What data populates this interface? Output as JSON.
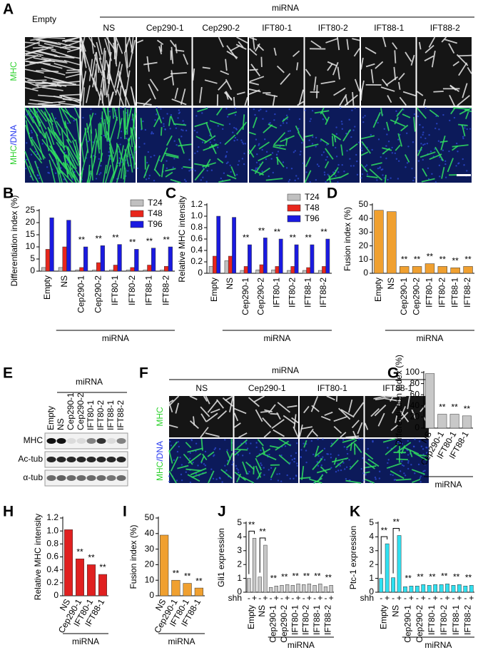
{
  "panel_a": {
    "panel": "A",
    "group_label": "miRNA",
    "columns": [
      "Empty",
      "NS",
      "Cep290-1",
      "Cep290-2",
      "IFT80-1",
      "IFT80-2",
      "IFT88-1",
      "IFT88-2"
    ],
    "row_labels": [
      [
        "MHC"
      ],
      [
        "MHC",
        "/DNA"
      ]
    ]
  },
  "panel_e": {
    "panel": "E",
    "group_label": "miRNA",
    "lanes": [
      "Empty",
      "NS",
      "Cep290-1",
      "Cep290-2",
      "IFT80-1",
      "IFT80-2",
      "IFT88-1",
      "IFT88-2"
    ],
    "rows": [
      "MHC",
      "Ac-tub",
      "α-tub"
    ]
  },
  "panel_f": {
    "panel": "F",
    "group_label": "miRNA",
    "columns": [
      "NS",
      "Cep290-1",
      "IFT80-1",
      "IFT88-1"
    ],
    "row_labels": [
      [
        "MHC"
      ],
      [
        "MHC",
        "/DNA"
      ]
    ]
  },
  "chart_data": [
    {
      "panel": "B",
      "type": "bar",
      "y_label": "Differentiation index (%)",
      "categories": [
        "Empty",
        "NS",
        "Cep290-1",
        "Cep290-2",
        "IFT80-1",
        "IFT80-2",
        "IFT88-1",
        "IFT88-2"
      ],
      "series": [
        {
          "name": "T24",
          "color": "#c0c0c0",
          "values": [
            1.5,
            1.5,
            0.5,
            0.5,
            0.5,
            0.5,
            0.5,
            0.5
          ]
        },
        {
          "name": "T48",
          "color": "#e8261c",
          "values": [
            9,
            10,
            1.5,
            3.5,
            2.5,
            1.5,
            2.5,
            2
          ]
        },
        {
          "name": "T96",
          "color": "#1a1ae0",
          "values": [
            22,
            21,
            10,
            10.5,
            11,
            9,
            9.5,
            10
          ]
        }
      ],
      "significance": [
        null,
        null,
        "**",
        "**",
        "**",
        "**",
        "**",
        "**"
      ],
      "legend": "upper right",
      "ylim": [
        0,
        25
      ],
      "yticks": [
        0,
        5,
        10,
        15,
        20,
        25
      ],
      "group_label": "miRNA"
    },
    {
      "panel": "C",
      "type": "bar",
      "y_label": "Relative MHC intensity",
      "categories": [
        "Empty",
        "NS",
        "Cep290-1",
        "Cep290-2",
        "IFT80-1",
        "IFT80-2",
        "IFT88-1",
        "IFT88-2"
      ],
      "series": [
        {
          "name": "T24",
          "color": "#c0c0c0",
          "values": [
            0.12,
            0.22,
            0.05,
            0.06,
            0.06,
            0.05,
            0.05,
            0.05
          ]
        },
        {
          "name": "T48",
          "color": "#e8261c",
          "values": [
            0.3,
            0.3,
            0.12,
            0.15,
            0.12,
            0.12,
            0.1,
            0.12
          ]
        },
        {
          "name": "T96",
          "color": "#1a1ae0",
          "values": [
            1.0,
            0.98,
            0.5,
            0.62,
            0.6,
            0.5,
            0.5,
            0.6
          ]
        }
      ],
      "significance": [
        null,
        null,
        "**",
        "**",
        "**",
        "**",
        "**",
        "**"
      ],
      "legend": "upper right",
      "ylim": [
        0,
        1.2
      ],
      "yticks": [
        0,
        0.2,
        0.4,
        0.6,
        0.8,
        {
          "value": 1,
          "label": "1.0"
        },
        1.2
      ],
      "group_label": "miRNA"
    },
    {
      "panel": "D",
      "type": "bar",
      "y_label": "Fusion index (%)",
      "categories": [
        "Empty",
        "NS",
        "Cep290-1",
        "Cep290-2",
        "IFT80-1",
        "IFT80-2",
        "IFT88-1",
        "IFT88-2"
      ],
      "values": [
        46,
        45,
        5,
        5,
        7,
        5,
        4,
        5
      ],
      "color": "#f0a030",
      "significance": [
        null,
        null,
        "**",
        "**",
        "**",
        "**",
        "**",
        "**"
      ],
      "ylim": [
        0,
        50
      ],
      "yticks": [
        0,
        10,
        20,
        30,
        40,
        50
      ],
      "group_label": "miRNA"
    },
    {
      "panel": "G",
      "type": "bar",
      "y_label": "Differentiation index (%)",
      "categories": [
        "NS",
        "Cep290-1",
        "IFT80-1",
        "IFT88-1"
      ],
      "values": [
        98,
        25,
        25,
        22
      ],
      "color": "#c8c8c8",
      "significance": [
        null,
        "**",
        "**",
        "**"
      ],
      "ylim": [
        0,
        100
      ],
      "yticks": [
        0,
        20,
        40,
        60,
        80,
        100
      ],
      "group_label": "miRNA"
    },
    {
      "panel": "H",
      "type": "bar",
      "y_label": "Relative MHC intensity",
      "categories": [
        "NS",
        "Cep290-1",
        "IFT80-1",
        "IFT88-1"
      ],
      "values": [
        1.02,
        0.57,
        0.48,
        0.33
      ],
      "color": "#e02020",
      "significance": [
        null,
        "**",
        "**",
        "**"
      ],
      "ylim": [
        0,
        1.2
      ],
      "yticks": [
        0,
        0.2,
        0.4,
        0.6,
        0.8,
        {
          "value": 1,
          "label": "1.0"
        },
        1.2
      ],
      "group_label": "miRNA"
    },
    {
      "panel": "I",
      "type": "bar",
      "y_label": "Fusion index (%)",
      "categories": [
        "NS",
        "Cep290-1",
        "IFT80-1",
        "IFT88-1"
      ],
      "values": [
        39,
        10,
        8,
        5
      ],
      "color": "#f0a030",
      "significance": [
        null,
        "**",
        "**",
        "**"
      ],
      "ylim": [
        0,
        50
      ],
      "yticks": [
        0,
        10,
        20,
        30,
        40,
        50
      ],
      "group_label": "miRNA"
    },
    {
      "panel": "J",
      "type": "bar",
      "y_label": "Gli1 expression",
      "x_label": "shh",
      "categories": [
        "-",
        "+",
        "-",
        "+",
        "-",
        "+",
        "-",
        "+",
        "-",
        "+",
        "-",
        "+",
        "-",
        "+",
        "-",
        "+"
      ],
      "values": [
        1,
        3.9,
        1.1,
        3.4,
        0.35,
        0.45,
        0.5,
        0.55,
        0.5,
        0.6,
        0.55,
        0.6,
        0.5,
        0.6,
        0.4,
        0.5
      ],
      "color": "#c8c8c8",
      "groups": [
        "Empty",
        "NS",
        "Cep290-1",
        "Cep290-2",
        "IFT80-1",
        "IFT80-2",
        "IFT88-1",
        "IFT88-2"
      ],
      "group_significance": [
        "**",
        "**",
        "**",
        "**",
        "**",
        "**",
        "**",
        "**"
      ],
      "ylim": [
        0,
        5
      ],
      "yticks": [
        0,
        1,
        2,
        3,
        4,
        5
      ],
      "group_label": "miRNA"
    },
    {
      "panel": "K",
      "type": "bar",
      "y_label": "Ptc-1 expression",
      "x_label": "shh",
      "categories": [
        "-",
        "+",
        "-",
        "+",
        "-",
        "+",
        "-",
        "+",
        "-",
        "+",
        "-",
        "+",
        "-",
        "+",
        "-",
        "+"
      ],
      "values": [
        1,
        3.5,
        1.05,
        4.1,
        0.4,
        0.45,
        0.45,
        0.55,
        0.5,
        0.55,
        0.55,
        0.6,
        0.5,
        0.55,
        0.45,
        0.5
      ],
      "color": "#30e0f0",
      "groups": [
        "Empty",
        "NS",
        "Cep290-1",
        "Cep290-2",
        "IFT80-1",
        "IFT80-2",
        "IFT88-1",
        "IFT88-2"
      ],
      "group_significance": [
        "**",
        "**",
        "**",
        "**",
        "**",
        "**",
        "**",
        "**"
      ],
      "ylim": [
        0,
        5
      ],
      "yticks": [
        0,
        1,
        2,
        3,
        4,
        5
      ],
      "group_label": "miRNA"
    }
  ]
}
